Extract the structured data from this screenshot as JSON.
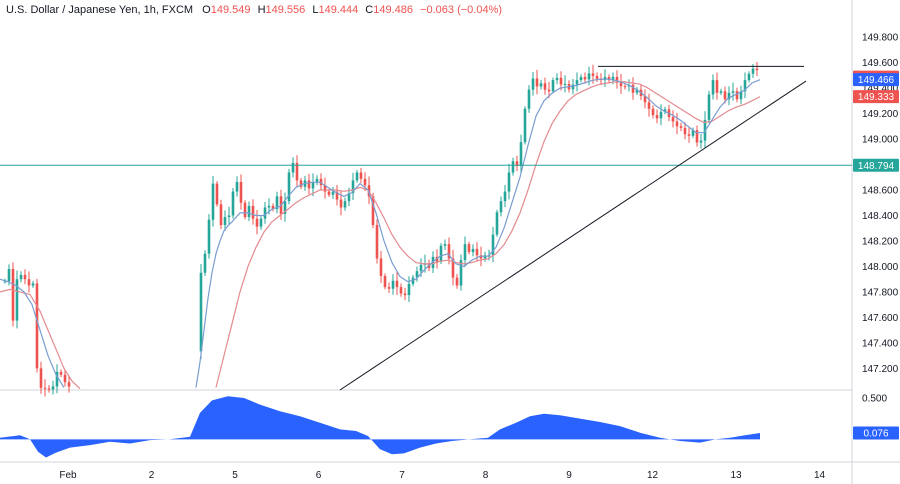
{
  "header": {
    "symbol": "U.S. Dollar / Japanese Yen, 1h, FXCM",
    "o_label": "O",
    "o_value": "149.549",
    "h_label": "H",
    "h_value": "149.556",
    "l_label": "L",
    "l_value": "149.444",
    "c_label": "C",
    "c_value": "149.486",
    "change": "−0.063 (−0.04%)"
  },
  "colors": {
    "up": "#26a69a",
    "down": "#ef5350",
    "hline": "#26a69a",
    "trend": "#131722",
    "ma_fast": "#7a9cd0",
    "ma_slow": "#e38a8f",
    "osc": "#2962ff"
  },
  "chart_data": {
    "type": "candlestick",
    "title": "U.S. Dollar / Japanese Yen, 1h, FXCM",
    "ylim": [
      147.03,
      149.95
    ],
    "y_ticks": [
      "149.800",
      "149.600",
      "149.400",
      "149.200",
      "149.000",
      "148.600",
      "148.400",
      "148.200",
      "148.000",
      "147.800",
      "147.600",
      "147.400",
      "147.200"
    ],
    "x_ticks": [
      "Feb",
      "2",
      "5",
      "6",
      "7",
      "8",
      "9",
      "12",
      "13",
      "14"
    ],
    "close_path": [
      [
        0,
        147.85
      ],
      [
        3,
        147.95
      ],
      [
        6,
        147.85
      ],
      [
        9,
        147.98
      ],
      [
        12,
        147.7
      ],
      [
        14,
        147.45
      ],
      [
        17,
        147.9
      ],
      [
        20,
        148.0
      ],
      [
        23,
        147.8
      ],
      [
        26,
        147.95
      ],
      [
        29,
        147.85
      ],
      [
        32,
        147.9
      ],
      [
        35,
        147.8
      ],
      [
        37,
        147.2
      ],
      [
        39,
        147.05
      ],
      [
        52,
        147.03
      ],
      [
        58,
        147.2
      ],
      [
        64,
        147.1
      ],
      [
        72,
        147.03
      ],
      [
        196,
        147.05
      ],
      [
        199,
        147.9
      ],
      [
        203,
        148.0
      ],
      [
        207,
        148.2
      ],
      [
        210,
        148.45
      ],
      [
        213,
        148.65
      ],
      [
        216,
        148.55
      ],
      [
        220,
        148.3
      ],
      [
        224,
        148.4
      ],
      [
        228,
        148.35
      ],
      [
        232,
        148.55
      ],
      [
        236,
        148.7
      ],
      [
        240,
        148.55
      ],
      [
        244,
        148.35
      ],
      [
        248,
        148.5
      ],
      [
        252,
        148.4
      ],
      [
        256,
        148.3
      ],
      [
        260,
        148.35
      ],
      [
        264,
        148.45
      ],
      [
        268,
        148.5
      ],
      [
        272,
        148.4
      ],
      [
        276,
        148.6
      ],
      [
        280,
        148.4
      ],
      [
        284,
        148.45
      ],
      [
        288,
        148.7
      ],
      [
        292,
        148.85
      ],
      [
        296,
        148.7
      ],
      [
        300,
        148.6
      ],
      [
        304,
        148.7
      ],
      [
        308,
        148.6
      ],
      [
        312,
        148.65
      ],
      [
        316,
        148.7
      ],
      [
        320,
        148.65
      ],
      [
        324,
        148.6
      ],
      [
        328,
        148.55
      ],
      [
        332,
        148.6
      ],
      [
        336,
        148.55
      ],
      [
        340,
        148.45
      ],
      [
        344,
        148.5
      ],
      [
        348,
        148.55
      ],
      [
        352,
        148.65
      ],
      [
        356,
        148.75
      ],
      [
        360,
        148.7
      ],
      [
        364,
        148.65
      ],
      [
        368,
        148.6
      ],
      [
        372,
        148.4
      ],
      [
        376,
        148.1
      ],
      [
        380,
        147.95
      ],
      [
        384,
        147.85
      ],
      [
        388,
        147.8
      ],
      [
        392,
        147.9
      ],
      [
        396,
        147.85
      ],
      [
        400,
        147.8
      ],
      [
        404,
        147.75
      ],
      [
        408,
        147.85
      ],
      [
        412,
        147.9
      ],
      [
        416,
        147.95
      ],
      [
        420,
        148.0
      ],
      [
        424,
        148.05
      ],
      [
        428,
        147.95
      ],
      [
        432,
        148.1
      ],
      [
        436,
        148.0
      ],
      [
        440,
        148.15
      ],
      [
        444,
        148.2
      ],
      [
        448,
        148.1
      ],
      [
        452,
        147.95
      ],
      [
        456,
        147.8
      ],
      [
        460,
        148.0
      ],
      [
        464,
        148.2
      ],
      [
        468,
        148.1
      ],
      [
        472,
        148.15
      ],
      [
        476,
        148.1
      ],
      [
        480,
        148.05
      ],
      [
        484,
        148.1
      ],
      [
        488,
        148.05
      ],
      [
        492,
        148.2
      ],
      [
        496,
        148.4
      ],
      [
        500,
        148.5
      ],
      [
        504,
        148.55
      ],
      [
        508,
        148.7
      ],
      [
        512,
        148.85
      ],
      [
        516,
        148.75
      ],
      [
        520,
        148.9
      ],
      [
        524,
        149.2
      ],
      [
        528,
        149.35
      ],
      [
        532,
        149.5
      ],
      [
        536,
        149.4
      ],
      [
        540,
        149.45
      ],
      [
        544,
        149.4
      ],
      [
        548,
        149.35
      ],
      [
        552,
        149.45
      ],
      [
        556,
        149.5
      ],
      [
        560,
        149.42
      ],
      [
        564,
        149.45
      ],
      [
        568,
        149.38
      ],
      [
        572,
        149.42
      ],
      [
        576,
        149.45
      ],
      [
        580,
        149.5
      ],
      [
        584,
        149.45
      ],
      [
        588,
        149.52
      ],
      [
        592,
        149.5
      ],
      [
        596,
        149.48
      ],
      [
        600,
        149.45
      ],
      [
        604,
        149.5
      ],
      [
        608,
        149.45
      ],
      [
        612,
        149.5
      ],
      [
        616,
        149.45
      ],
      [
        620,
        149.42
      ],
      [
        624,
        149.4
      ],
      [
        628,
        149.45
      ],
      [
        632,
        149.35
      ],
      [
        636,
        149.4
      ],
      [
        640,
        149.35
      ],
      [
        644,
        149.3
      ],
      [
        648,
        149.25
      ],
      [
        652,
        149.2
      ],
      [
        656,
        149.15
      ],
      [
        660,
        149.2
      ],
      [
        664,
        149.25
      ],
      [
        668,
        149.18
      ],
      [
        672,
        149.15
      ],
      [
        676,
        149.1
      ],
      [
        680,
        149.1
      ],
      [
        684,
        149.05
      ],
      [
        688,
        149.0
      ],
      [
        692,
        149.1
      ],
      [
        696,
        148.98
      ],
      [
        700,
        148.95
      ],
      [
        704,
        149.1
      ],
      [
        708,
        149.3
      ],
      [
        712,
        149.5
      ],
      [
        716,
        149.35
      ],
      [
        720,
        149.4
      ],
      [
        724,
        149.3
      ],
      [
        728,
        149.35
      ],
      [
        732,
        149.4
      ],
      [
        736,
        149.3
      ],
      [
        740,
        149.35
      ],
      [
        744,
        149.45
      ],
      [
        748,
        149.5
      ],
      [
        752,
        149.55
      ],
      [
        756,
        149.56
      ],
      [
        760,
        149.486
      ]
    ],
    "ma_fast_path": [
      [
        0,
        147.9
      ],
      [
        8,
        147.88
      ],
      [
        16,
        147.85
      ],
      [
        24,
        147.8
      ],
      [
        32,
        147.7
      ],
      [
        40,
        147.5
      ],
      [
        48,
        147.3
      ],
      [
        56,
        147.15
      ],
      [
        64,
        147.05
      ],
      [
        196,
        147.05
      ],
      [
        200,
        147.25
      ],
      [
        204,
        147.5
      ],
      [
        208,
        147.75
      ],
      [
        212,
        147.95
      ],
      [
        216,
        148.1
      ],
      [
        220,
        148.2
      ],
      [
        224,
        148.28
      ],
      [
        228,
        148.32
      ],
      [
        232,
        148.35
      ],
      [
        240,
        148.42
      ],
      [
        248,
        148.42
      ],
      [
        256,
        148.4
      ],
      [
        264,
        148.4
      ],
      [
        272,
        148.45
      ],
      [
        280,
        148.47
      ],
      [
        288,
        148.55
      ],
      [
        296,
        148.62
      ],
      [
        304,
        148.65
      ],
      [
        312,
        148.66
      ],
      [
        320,
        148.66
      ],
      [
        328,
        148.62
      ],
      [
        336,
        148.58
      ],
      [
        344,
        148.55
      ],
      [
        352,
        148.58
      ],
      [
        360,
        148.65
      ],
      [
        368,
        148.6
      ],
      [
        376,
        148.42
      ],
      [
        384,
        148.2
      ],
      [
        392,
        148.03
      ],
      [
        400,
        147.92
      ],
      [
        408,
        147.88
      ],
      [
        416,
        147.9
      ],
      [
        424,
        147.97
      ],
      [
        432,
        148.03
      ],
      [
        440,
        148.08
      ],
      [
        448,
        148.1
      ],
      [
        456,
        148.02
      ],
      [
        464,
        148.0
      ],
      [
        472,
        148.05
      ],
      [
        480,
        148.08
      ],
      [
        488,
        148.08
      ],
      [
        496,
        148.15
      ],
      [
        504,
        148.3
      ],
      [
        512,
        148.5
      ],
      [
        520,
        148.7
      ],
      [
        528,
        148.95
      ],
      [
        536,
        149.18
      ],
      [
        544,
        149.3
      ],
      [
        552,
        149.36
      ],
      [
        560,
        149.4
      ],
      [
        568,
        149.41
      ],
      [
        576,
        149.42
      ],
      [
        584,
        149.44
      ],
      [
        592,
        149.46
      ],
      [
        600,
        149.47
      ],
      [
        608,
        149.47
      ],
      [
        616,
        149.46
      ],
      [
        624,
        149.44
      ],
      [
        632,
        149.41
      ],
      [
        640,
        149.37
      ],
      [
        648,
        149.32
      ],
      [
        656,
        149.26
      ],
      [
        664,
        149.22
      ],
      [
        672,
        149.19
      ],
      [
        680,
        149.15
      ],
      [
        688,
        149.1
      ],
      [
        696,
        149.05
      ],
      [
        704,
        149.05
      ],
      [
        712,
        149.15
      ],
      [
        720,
        149.25
      ],
      [
        728,
        149.32
      ],
      [
        736,
        149.35
      ],
      [
        744,
        149.38
      ],
      [
        752,
        149.44
      ],
      [
        760,
        149.466
      ]
    ],
    "ma_slow_path": [
      [
        0,
        147.8
      ],
      [
        10,
        147.82
      ],
      [
        20,
        147.8
      ],
      [
        30,
        147.78
      ],
      [
        40,
        147.65
      ],
      [
        48,
        147.5
      ],
      [
        56,
        147.35
      ],
      [
        64,
        147.2
      ],
      [
        72,
        147.1
      ],
      [
        80,
        147.04
      ],
      [
        216,
        147.05
      ],
      [
        224,
        147.3
      ],
      [
        232,
        147.55
      ],
      [
        240,
        147.8
      ],
      [
        248,
        148.0
      ],
      [
        256,
        148.15
      ],
      [
        264,
        148.27
      ],
      [
        272,
        148.35
      ],
      [
        280,
        148.4
      ],
      [
        288,
        148.45
      ],
      [
        296,
        148.5
      ],
      [
        304,
        148.54
      ],
      [
        312,
        148.57
      ],
      [
        320,
        148.6
      ],
      [
        328,
        148.6
      ],
      [
        336,
        148.6
      ],
      [
        344,
        148.59
      ],
      [
        352,
        148.6
      ],
      [
        360,
        148.62
      ],
      [
        368,
        148.6
      ],
      [
        376,
        148.5
      ],
      [
        384,
        148.38
      ],
      [
        392,
        148.25
      ],
      [
        400,
        148.15
      ],
      [
        408,
        148.08
      ],
      [
        416,
        148.03
      ],
      [
        424,
        148.02
      ],
      [
        432,
        148.02
      ],
      [
        440,
        148.04
      ],
      [
        448,
        148.05
      ],
      [
        456,
        148.03
      ],
      [
        464,
        148.02
      ],
      [
        472,
        148.03
      ],
      [
        480,
        148.05
      ],
      [
        488,
        148.06
      ],
      [
        496,
        148.1
      ],
      [
        504,
        148.17
      ],
      [
        512,
        148.28
      ],
      [
        520,
        148.42
      ],
      [
        528,
        148.6
      ],
      [
        536,
        148.8
      ],
      [
        544,
        148.98
      ],
      [
        552,
        149.12
      ],
      [
        560,
        149.22
      ],
      [
        568,
        149.3
      ],
      [
        576,
        149.35
      ],
      [
        584,
        149.38
      ],
      [
        592,
        149.41
      ],
      [
        600,
        149.43
      ],
      [
        608,
        149.44
      ],
      [
        616,
        149.45
      ],
      [
        624,
        149.45
      ],
      [
        632,
        149.44
      ],
      [
        640,
        149.43
      ],
      [
        648,
        149.4
      ],
      [
        656,
        149.36
      ],
      [
        664,
        149.32
      ],
      [
        672,
        149.28
      ],
      [
        680,
        149.24
      ],
      [
        688,
        149.2
      ],
      [
        696,
        149.16
      ],
      [
        704,
        149.13
      ],
      [
        712,
        149.14
      ],
      [
        720,
        149.18
      ],
      [
        728,
        149.22
      ],
      [
        736,
        149.25
      ],
      [
        744,
        149.27
      ],
      [
        752,
        149.3
      ],
      [
        760,
        149.333
      ]
    ],
    "hline": 148.794,
    "resistance": {
      "x0": 598,
      "x1": 804,
      "y": 149.57
    },
    "trendline": {
      "x0": 340,
      "y0": 147.03,
      "x1": 806,
      "y1": 149.455
    },
    "price_tags": [
      {
        "label": "149.486",
        "value": 149.486,
        "kind": "down"
      },
      {
        "label": "149.466",
        "value": 149.466,
        "kind": "fast"
      },
      {
        "label": "149.333",
        "value": 149.333,
        "kind": "down"
      },
      {
        "label": "148.794",
        "value": 148.794,
        "kind": "hline"
      }
    ],
    "oscillator": {
      "ylim": [
        -0.25,
        0.56
      ],
      "y_ticks": [
        "0.500"
      ],
      "last_label": "0.076",
      "last_value": 0.076,
      "path": [
        [
          0,
          0.02
        ],
        [
          20,
          0.05
        ],
        [
          30,
          0.0
        ],
        [
          38,
          -0.15
        ],
        [
          46,
          -0.22
        ],
        [
          56,
          -0.16
        ],
        [
          70,
          -0.1
        ],
        [
          90,
          -0.07
        ],
        [
          110,
          -0.03
        ],
        [
          130,
          -0.05
        ],
        [
          150,
          -0.01
        ],
        [
          170,
          0.0
        ],
        [
          190,
          0.03
        ],
        [
          200,
          0.32
        ],
        [
          212,
          0.47
        ],
        [
          228,
          0.52
        ],
        [
          244,
          0.5
        ],
        [
          260,
          0.42
        ],
        [
          280,
          0.34
        ],
        [
          300,
          0.28
        ],
        [
          320,
          0.2
        ],
        [
          340,
          0.12
        ],
        [
          356,
          0.1
        ],
        [
          368,
          0.04
        ],
        [
          380,
          -0.12
        ],
        [
          392,
          -0.18
        ],
        [
          404,
          -0.17
        ],
        [
          420,
          -0.1
        ],
        [
          436,
          -0.05
        ],
        [
          452,
          -0.02
        ],
        [
          470,
          0.0
        ],
        [
          488,
          0.02
        ],
        [
          500,
          0.12
        ],
        [
          516,
          0.2
        ],
        [
          530,
          0.28
        ],
        [
          544,
          0.31
        ],
        [
          560,
          0.29
        ],
        [
          580,
          0.25
        ],
        [
          600,
          0.21
        ],
        [
          620,
          0.16
        ],
        [
          640,
          0.08
        ],
        [
          660,
          0.02
        ],
        [
          680,
          -0.02
        ],
        [
          700,
          -0.04
        ],
        [
          716,
          0.0
        ],
        [
          730,
          0.02
        ],
        [
          745,
          0.05
        ],
        [
          760,
          0.076
        ]
      ]
    }
  }
}
